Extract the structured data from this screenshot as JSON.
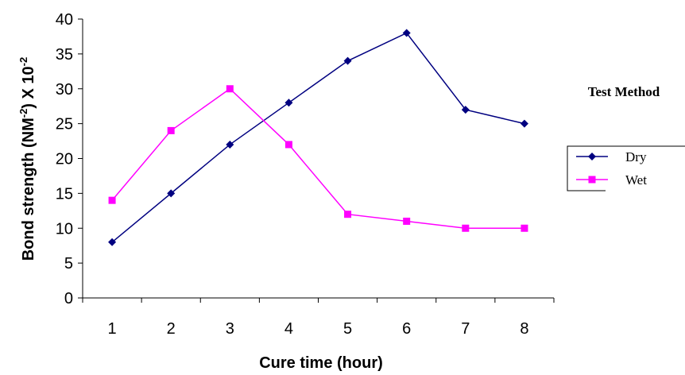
{
  "chart_data": {
    "type": "line",
    "x": [
      1,
      2,
      3,
      4,
      5,
      6,
      7,
      8
    ],
    "series": [
      {
        "name": "Dry",
        "values": [
          8,
          15,
          22,
          28,
          34,
          38,
          27,
          25
        ],
        "color": "#000080",
        "marker": "diamond"
      },
      {
        "name": "Wet",
        "values": [
          14,
          24,
          30,
          22,
          12,
          11,
          10,
          10
        ],
        "color": "#ff00ff",
        "marker": "square"
      }
    ],
    "xlabel": "Cure time (hour)",
    "ylabel": {
      "main": "Bond strength (NM",
      "sup1": "-2",
      "mid": ") X 10",
      "sup2": "-2"
    },
    "ylim": [
      0,
      40
    ],
    "yticks": [
      0,
      5,
      10,
      15,
      20,
      25,
      30,
      35,
      40
    ],
    "xtick_labels": [
      "1",
      "2",
      "3",
      "4",
      "5",
      "6",
      "7",
      "8"
    ],
    "grid": false,
    "legend": {
      "title": "Test Method",
      "placement": "right"
    }
  }
}
